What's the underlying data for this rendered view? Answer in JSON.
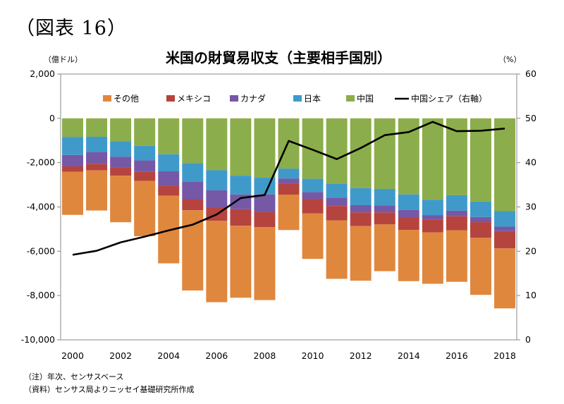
{
  "figure_label": "（図表 16）",
  "chart_data": {
    "type": "bar",
    "subtype": "stacked-bar-with-line",
    "title": "米国の財貿易収支（主要相手国別）",
    "y_left_unit": "（億ドル）",
    "y_right_unit": "（%）",
    "ylim_left": [
      -10000,
      2000
    ],
    "ylim_right": [
      0,
      60
    ],
    "y_left_ticks": [
      "2,000",
      "0",
      "-2,000",
      "-4,000",
      "-6,000",
      "-8,000",
      "-10,000"
    ],
    "y_right_ticks": [
      "60",
      "50",
      "40",
      "30",
      "20",
      "10",
      "0"
    ],
    "x_tick_labels": [
      "2000",
      "2002",
      "2004",
      "2006",
      "2008",
      "2010",
      "2012",
      "2014",
      "2016",
      "2018"
    ],
    "categories": [
      "2000",
      "2001",
      "2002",
      "2003",
      "2004",
      "2005",
      "2006",
      "2007",
      "2008",
      "2009",
      "2010",
      "2011",
      "2012",
      "2013",
      "2014",
      "2015",
      "2016",
      "2017",
      "2018"
    ],
    "grid": false,
    "legend_position": "top",
    "series": [
      {
        "name": "中国",
        "kind": "bar",
        "color": "#8cad4b",
        "values": [
          -838,
          -830,
          -1031,
          -1240,
          -1620,
          -2021,
          -2342,
          -2587,
          -2681,
          -2269,
          -2730,
          -2952,
          -3151,
          -3187,
          -3435,
          -3672,
          -3470,
          -3756,
          -4192
        ]
      },
      {
        "name": "日本",
        "kind": "bar",
        "color": "#3f9ac9",
        "values": [
          -815,
          -691,
          -700,
          -661,
          -774,
          -848,
          -911,
          -851,
          -752,
          -449,
          -604,
          -637,
          -768,
          -747,
          -698,
          -696,
          -700,
          -700,
          -700
        ]
      },
      {
        "name": "カナダ",
        "kind": "bar",
        "color": "#7558a6",
        "values": [
          -517,
          -531,
          -489,
          -514,
          -653,
          -781,
          -761,
          -669,
          -804,
          -245,
          -301,
          -370,
          -327,
          -312,
          -360,
          -200,
          -250,
          -230,
          -200
        ]
      },
      {
        "name": "メキシコ",
        "kind": "bar",
        "color": "#b5443f",
        "values": [
          -248,
          -300,
          -371,
          -406,
          -450,
          -502,
          -606,
          -743,
          -679,
          -480,
          -662,
          -648,
          -619,
          -543,
          -543,
          -580,
          -630,
          -710,
          -780
        ]
      },
      {
        "name": "その他",
        "kind": "bar",
        "color": "#e0873e",
        "values": [
          -1940,
          -1810,
          -2100,
          -2500,
          -3050,
          -3620,
          -3680,
          -3250,
          -3290,
          -1600,
          -2050,
          -2640,
          -2465,
          -2111,
          -2314,
          -2322,
          -2330,
          -2574,
          -2708
        ]
      },
      {
        "name": "中国シェア（右軸）",
        "kind": "line",
        "axis": "right",
        "color": "#000000",
        "values": [
          19.2,
          20.1,
          22.0,
          23.3,
          24.7,
          26.0,
          28.3,
          32.0,
          32.7,
          44.9,
          42.9,
          40.8,
          43.3,
          46.2,
          46.9,
          49.2,
          47.1,
          47.2,
          47.7
        ]
      }
    ]
  },
  "notes": [
    "（注）年次、センサスベース",
    "（資料）センサス局よりニッセイ基礎研究所作成"
  ]
}
